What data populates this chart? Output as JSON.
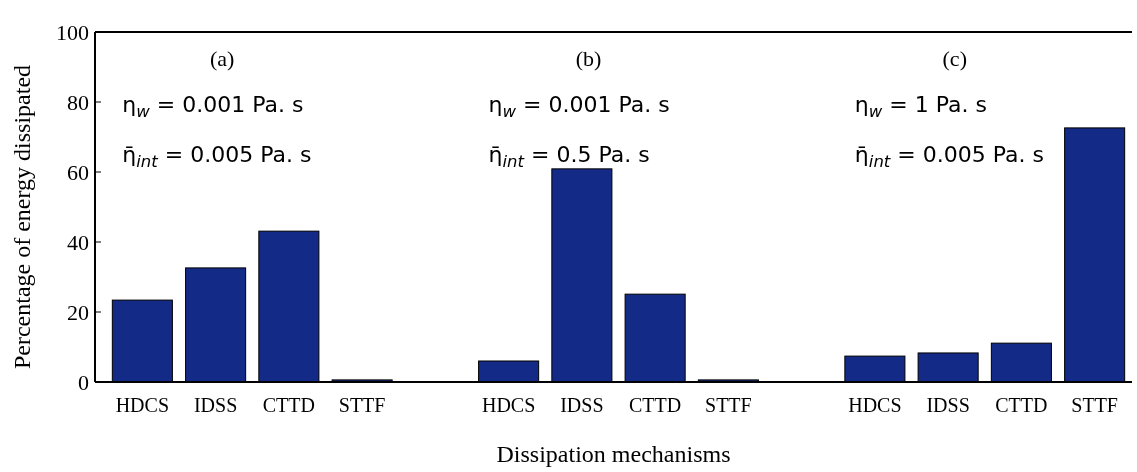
{
  "chart_data": {
    "type": "bar",
    "xlabel": "Dissipation mechanisms",
    "ylabel": "Percentage of energy dissipated",
    "categories": [
      "HDCS",
      "IDSS",
      "CTTD",
      "STTF",
      null,
      "HDCS",
      "IDSS",
      "CTTD",
      "STTF",
      null,
      "HDCS",
      "IDSS",
      "CTTD",
      "STTF"
    ],
    "values": [
      23.4,
      32.6,
      43.1,
      0.6,
      null,
      6,
      60.9,
      25.1,
      0.6,
      null,
      7.4,
      8.3,
      11.1,
      72.6
    ],
    "color": "#142a87",
    "ylim": [
      0,
      100
    ],
    "yticks": [
      0,
      20,
      40,
      60,
      80,
      100
    ],
    "grid": false,
    "annotations": [
      "(a)",
      "η$_{w}$ = 0.001 Pa. s",
      "η̄$_{int}$ = 0.005 Pa. s",
      "(b)",
      "η$_{w}$ = 0.001 Pa. s",
      "η̄$_{int}$ = 0.5 Pa. s",
      "(c)",
      "η$_{w}$ = 1 Pa. s",
      "η̄$_{int}$ = 0.005 Pa. s"
    ]
  }
}
